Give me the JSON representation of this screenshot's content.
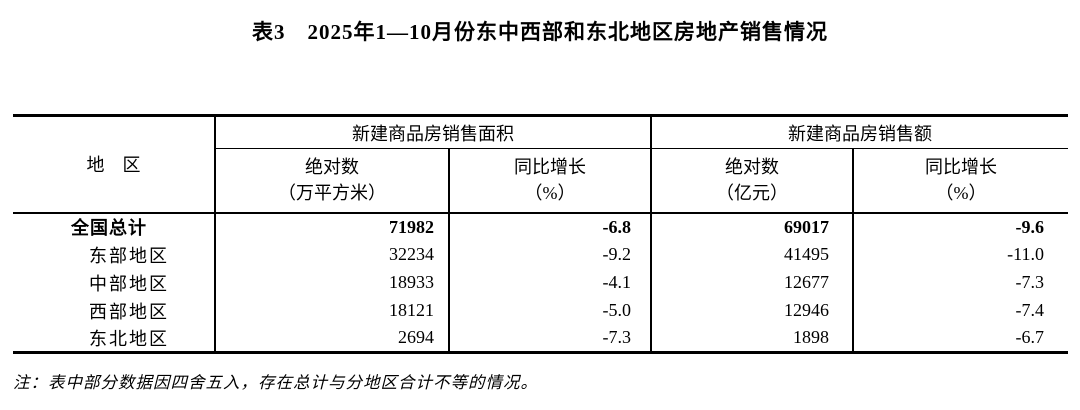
{
  "page": {
    "background": "#ffffff",
    "text_color": "#000000"
  },
  "title": "表3　2025年1—10月份东中西部和东北地区房地产销售情况",
  "table": {
    "region_header": "地　区",
    "groups": [
      {
        "label": "新建商品房销售面积",
        "sub": [
          {
            "line1": "绝对数",
            "line2": "（万平方米）"
          },
          {
            "line1": "同比增长",
            "line2": "（%）"
          }
        ]
      },
      {
        "label": "新建商品房销售额",
        "sub": [
          {
            "line1": "绝对数",
            "line2": "（亿元）"
          },
          {
            "line1": "同比增长",
            "line2": "（%）"
          }
        ]
      }
    ],
    "rows": [
      {
        "region": "全国总计",
        "area_abs": "71982",
        "area_yoy": "-6.8",
        "value_abs": "69017",
        "value_yoy": "-9.6",
        "bold": true
      },
      {
        "region": "东部地区",
        "area_abs": "32234",
        "area_yoy": "-9.2",
        "value_abs": "41495",
        "value_yoy": "-11.0",
        "bold": false
      },
      {
        "region": "中部地区",
        "area_abs": "18933",
        "area_yoy": "-4.1",
        "value_abs": "12677",
        "value_yoy": "-7.3",
        "bold": false
      },
      {
        "region": "西部地区",
        "area_abs": "18121",
        "area_yoy": "-5.0",
        "value_abs": "12946",
        "value_yoy": "-7.4",
        "bold": false
      },
      {
        "region": "东北地区",
        "area_abs": "2694",
        "area_yoy": "-7.3",
        "value_abs": "1898",
        "value_yoy": "-6.7",
        "bold": false
      }
    ]
  },
  "note": "注：表中部分数据因四舍五入，存在总计与分地区合计不等的情况。"
}
